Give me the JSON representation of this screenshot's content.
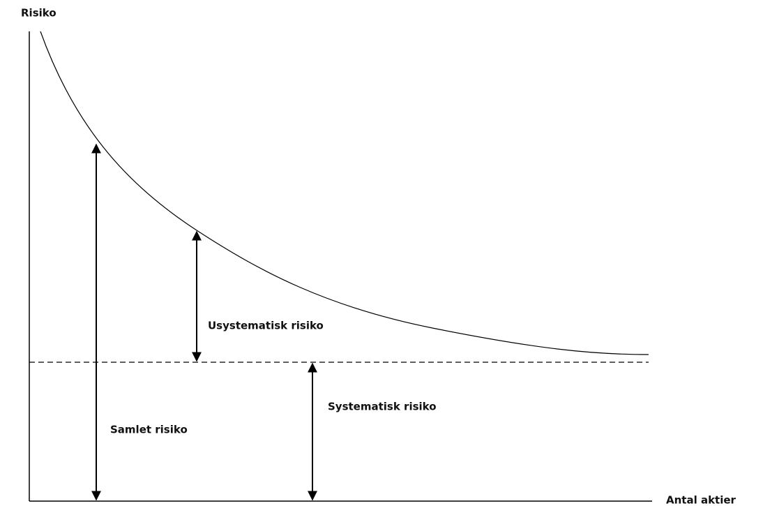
{
  "y_axis_label": "Risiko",
  "x_axis_label": "Antal aktier",
  "labels": {
    "unsystematic": "Usystematisk risiko",
    "systematic": "Systematisk risiko",
    "total": "Samlet risiko"
  }
}
